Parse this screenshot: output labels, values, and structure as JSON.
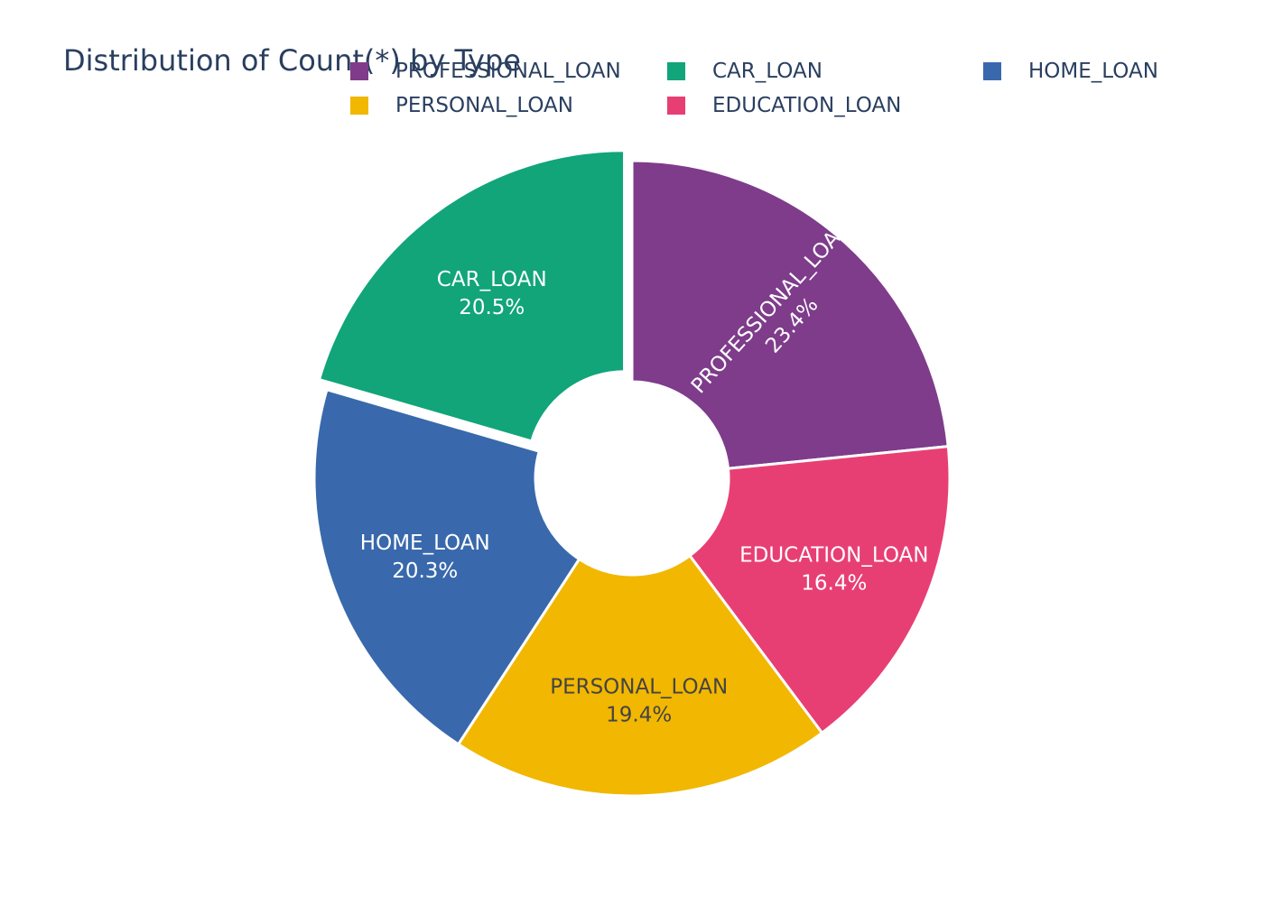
{
  "chart_data": {
    "type": "pie",
    "hole": true,
    "title": "Distribution of Count(*) by Type",
    "legend_position": "top",
    "labels": [
      "PROFESSIONAL_LOAN",
      "EDUCATION_LOAN",
      "PERSONAL_LOAN",
      "HOME_LOAN",
      "CAR_LOAN"
    ],
    "values": [
      23.4,
      16.4,
      19.4,
      20.3,
      20.5
    ],
    "percent_labels": [
      "23.4%",
      "16.4%",
      "19.4%",
      "20.3%",
      "20.5%"
    ],
    "colors": [
      "#7e3c8b",
      "#e73f74",
      "#f2b701",
      "#3969ac",
      "#11a579"
    ],
    "pulled": [
      "CAR_LOAN"
    ],
    "legend_order": [
      "PROFESSIONAL_LOAN",
      "CAR_LOAN",
      "HOME_LOAN",
      "PERSONAL_LOAN",
      "EDUCATION_LOAN"
    ]
  }
}
